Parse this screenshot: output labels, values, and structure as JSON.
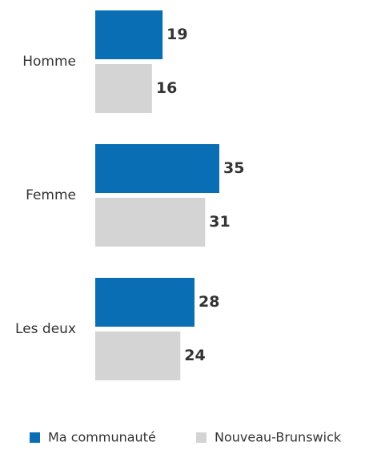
{
  "chart_data": {
    "type": "bar",
    "orientation": "horizontal",
    "categories": [
      "Homme",
      "Femme",
      "Les deux"
    ],
    "series": [
      {
        "name": "Ma communauté",
        "color": "#0a6eb4",
        "values": [
          19,
          35,
          28
        ]
      },
      {
        "name": "Nouveau-Brunswick",
        "color": "#d4d4d4",
        "values": [
          16,
          31,
          24
        ]
      }
    ]
  }
}
